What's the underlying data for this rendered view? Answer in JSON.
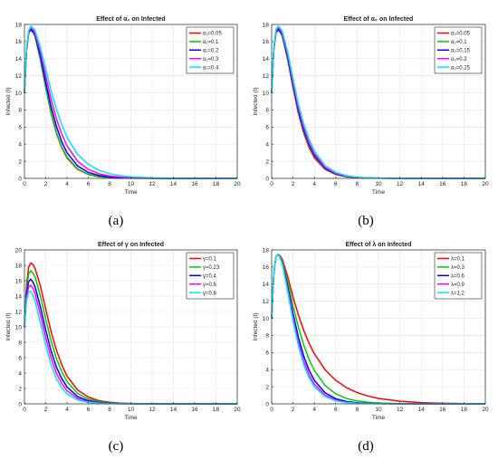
{
  "chart_data": [
    {
      "type": "line",
      "title": "Effect of α₁ on Infected",
      "caption": "(a)",
      "xlabel": "Time",
      "ylabel": "Infected (I)",
      "xlim": [
        0,
        20
      ],
      "ylim": [
        0,
        18
      ],
      "xticks": [
        0,
        2,
        4,
        6,
        8,
        10,
        12,
        14,
        16,
        18,
        20
      ],
      "yticks": [
        0,
        2,
        4,
        6,
        8,
        10,
        12,
        14,
        16,
        18
      ],
      "grid": true,
      "legend": "top-right",
      "x": [
        0,
        0.2,
        0.4,
        0.6,
        0.8,
        1,
        1.5,
        2,
        2.5,
        3,
        3.5,
        4,
        5,
        6,
        7,
        8,
        9,
        10,
        12,
        14,
        16,
        18,
        20
      ],
      "series": [
        {
          "name": "α₁=0.05",
          "color": "#ff0000",
          "values": [
            10.0,
            15.0,
            17.0,
            17.3,
            17.1,
            16.6,
            13.9,
            10.6,
            7.6,
            5.3,
            3.6,
            2.4,
            1.05,
            0.45,
            0.19,
            0.08,
            0.04,
            0.02,
            0.01,
            0.0,
            0.0,
            0.0,
            0.0
          ]
        },
        {
          "name": "α₁=0.1",
          "color": "#00cc00",
          "values": [
            10.0,
            15.0,
            17.0,
            17.3,
            17.1,
            16.6,
            13.9,
            10.6,
            7.7,
            5.4,
            3.7,
            2.5,
            1.1,
            0.48,
            0.21,
            0.09,
            0.04,
            0.02,
            0.01,
            0.0,
            0.0,
            0.0,
            0.0
          ]
        },
        {
          "name": "α₁=0.2",
          "color": "#0000ff",
          "values": [
            10.0,
            15.1,
            17.1,
            17.4,
            17.2,
            16.8,
            14.3,
            11.2,
            8.4,
            6.1,
            4.3,
            3.0,
            1.45,
            0.7,
            0.34,
            0.16,
            0.08,
            0.04,
            0.01,
            0.0,
            0.0,
            0.0,
            0.0
          ]
        },
        {
          "name": "α₁=0.3",
          "color": "#ff00ff",
          "values": [
            10.0,
            15.2,
            17.2,
            17.6,
            17.4,
            17.0,
            14.8,
            12.0,
            9.3,
            7.0,
            5.2,
            3.8,
            2.0,
            1.05,
            0.55,
            0.28,
            0.15,
            0.08,
            0.02,
            0.01,
            0.0,
            0.0,
            0.0
          ]
        },
        {
          "name": "α₁=0.4",
          "color": "#00e5ff",
          "values": [
            10.0,
            15.3,
            17.3,
            17.8,
            17.6,
            17.3,
            15.3,
            12.8,
            10.3,
            8.1,
            6.3,
            4.8,
            2.8,
            1.65,
            0.95,
            0.55,
            0.32,
            0.18,
            0.06,
            0.02,
            0.01,
            0.0,
            0.0
          ]
        }
      ]
    },
    {
      "type": "line",
      "title": "Effect of α₂ on Infected",
      "caption": "(b)",
      "xlabel": "Time",
      "ylabel": "Infected (I)",
      "xlim": [
        0,
        20
      ],
      "ylim": [
        0,
        18
      ],
      "xticks": [
        0,
        2,
        4,
        6,
        8,
        10,
        12,
        14,
        16,
        18,
        20
      ],
      "yticks": [
        0,
        2,
        4,
        6,
        8,
        10,
        12,
        14,
        16,
        18
      ],
      "grid": true,
      "legend": "top-right",
      "x": [
        0,
        0.2,
        0.4,
        0.6,
        0.8,
        1,
        1.5,
        2,
        2.5,
        3,
        3.5,
        4,
        5,
        6,
        7,
        8,
        9,
        10,
        12,
        14,
        16,
        18,
        20
      ],
      "series": [
        {
          "name": "α₂=0.05",
          "color": "#ff0000",
          "values": [
            10.0,
            15.0,
            17.0,
            17.3,
            17.1,
            16.6,
            13.9,
            10.6,
            7.6,
            5.3,
            3.6,
            2.4,
            1.05,
            0.45,
            0.19,
            0.08,
            0.04,
            0.02,
            0.01,
            0.0,
            0.0,
            0.0,
            0.0
          ]
        },
        {
          "name": "α₂=0.1",
          "color": "#00cc00",
          "values": [
            10.0,
            15.0,
            17.0,
            17.35,
            17.15,
            16.7,
            14.0,
            10.8,
            7.8,
            5.5,
            3.8,
            2.55,
            1.12,
            0.49,
            0.21,
            0.09,
            0.04,
            0.02,
            0.01,
            0.0,
            0.0,
            0.0,
            0.0
          ]
        },
        {
          "name": "α₂=0.15",
          "color": "#0000ff",
          "values": [
            10.0,
            15.1,
            17.1,
            17.45,
            17.25,
            16.8,
            14.2,
            11.0,
            8.0,
            5.7,
            4.0,
            2.7,
            1.2,
            0.53,
            0.23,
            0.1,
            0.05,
            0.02,
            0.01,
            0.0,
            0.0,
            0.0,
            0.0
          ]
        },
        {
          "name": "α₂=0.2",
          "color": "#ff00ff",
          "values": [
            10.0,
            15.15,
            17.2,
            17.6,
            17.4,
            17.0,
            14.5,
            11.3,
            8.3,
            6.0,
            4.2,
            2.9,
            1.3,
            0.58,
            0.26,
            0.12,
            0.05,
            0.02,
            0.01,
            0.0,
            0.0,
            0.0,
            0.0
          ]
        },
        {
          "name": "α₂=0.25",
          "color": "#00e5ff",
          "values": [
            10.0,
            15.3,
            17.4,
            17.8,
            17.6,
            17.2,
            14.8,
            11.7,
            8.7,
            6.4,
            4.6,
            3.2,
            1.5,
            0.7,
            0.32,
            0.15,
            0.07,
            0.03,
            0.01,
            0.0,
            0.0,
            0.0,
            0.0
          ]
        }
      ]
    },
    {
      "type": "line",
      "title": "Effect of γ on Infected",
      "caption": "(c)",
      "xlabel": "Time",
      "ylabel": "Infected (I)",
      "xlim": [
        0,
        20
      ],
      "ylim": [
        0,
        20
      ],
      "xticks": [
        0,
        2,
        4,
        6,
        8,
        10,
        12,
        14,
        16,
        18,
        20
      ],
      "yticks": [
        0,
        2,
        4,
        6,
        8,
        10,
        12,
        14,
        16,
        18,
        20
      ],
      "grid": true,
      "legend": "top-right",
      "x": [
        0,
        0.2,
        0.4,
        0.6,
        0.8,
        1,
        1.5,
        2,
        2.5,
        3,
        3.5,
        4,
        5,
        6,
        7,
        8,
        9,
        10,
        12,
        14,
        16,
        18,
        20
      ],
      "series": [
        {
          "name": "γ=0.1",
          "color": "#ff0000",
          "values": [
            10.0,
            15.5,
            17.8,
            18.3,
            18.1,
            17.6,
            15.3,
            12.3,
            9.4,
            7.0,
            5.1,
            3.6,
            1.8,
            0.88,
            0.42,
            0.2,
            0.1,
            0.05,
            0.01,
            0.0,
            0.0,
            0.0,
            0.0
          ]
        },
        {
          "name": "γ=0.23",
          "color": "#00cc00",
          "values": [
            10.0,
            15.0,
            16.9,
            17.3,
            17.0,
            16.5,
            14.0,
            11.0,
            8.2,
            5.9,
            4.2,
            2.9,
            1.35,
            0.62,
            0.28,
            0.13,
            0.06,
            0.03,
            0.01,
            0.0,
            0.0,
            0.0,
            0.0
          ]
        },
        {
          "name": "γ=0.4",
          "color": "#0000ff",
          "values": [
            10.0,
            14.4,
            15.9,
            16.2,
            15.8,
            15.2,
            12.6,
            9.6,
            6.9,
            4.8,
            3.3,
            2.2,
            0.95,
            0.4,
            0.17,
            0.07,
            0.03,
            0.01,
            0.0,
            0.0,
            0.0,
            0.0,
            0.0
          ]
        },
        {
          "name": "γ=0.6",
          "color": "#ff00ff",
          "values": [
            10.0,
            13.9,
            15.2,
            15.4,
            15.0,
            14.3,
            11.6,
            8.6,
            6.0,
            4.0,
            2.65,
            1.7,
            0.7,
            0.28,
            0.11,
            0.04,
            0.02,
            0.01,
            0.0,
            0.0,
            0.0,
            0.0,
            0.0
          ]
        },
        {
          "name": "γ=0.8",
          "color": "#00e5ff",
          "values": [
            10.0,
            13.4,
            14.5,
            14.6,
            14.1,
            13.3,
            10.5,
            7.6,
            5.1,
            3.3,
            2.1,
            1.3,
            0.5,
            0.19,
            0.07,
            0.03,
            0.01,
            0.0,
            0.0,
            0.0,
            0.0,
            0.0,
            0.0
          ]
        }
      ]
    },
    {
      "type": "line",
      "title": "Effect of λ on Infected",
      "caption": "(d)",
      "xlabel": "Time",
      "ylabel": "Infected (I)",
      "xlim": [
        0,
        20
      ],
      "ylim": [
        0,
        18
      ],
      "xticks": [
        0,
        2,
        4,
        6,
        8,
        10,
        12,
        14,
        16,
        18,
        20
      ],
      "yticks": [
        0,
        2,
        4,
        6,
        8,
        10,
        12,
        14,
        16,
        18
      ],
      "grid": true,
      "legend": "top-right",
      "x": [
        0,
        0.2,
        0.4,
        0.6,
        0.8,
        1,
        1.5,
        2,
        2.5,
        3,
        3.5,
        4,
        5,
        6,
        7,
        8,
        9,
        10,
        12,
        14,
        16,
        18,
        20
      ],
      "series": [
        {
          "name": "λ=0.1",
          "color": "#ff0000",
          "values": [
            10.0,
            15.2,
            17.2,
            17.5,
            17.3,
            16.9,
            14.9,
            12.5,
            10.4,
            8.6,
            7.1,
            5.85,
            4.0,
            2.75,
            1.9,
            1.32,
            0.92,
            0.64,
            0.3,
            0.14,
            0.07,
            0.03,
            0.02
          ]
        },
        {
          "name": "λ=0.3",
          "color": "#00cc00",
          "values": [
            10.0,
            15.2,
            17.2,
            17.5,
            17.2,
            16.7,
            14.3,
            11.5,
            9.0,
            6.9,
            5.2,
            3.9,
            2.15,
            1.17,
            0.63,
            0.34,
            0.18,
            0.1,
            0.03,
            0.01,
            0.0,
            0.0,
            0.0
          ]
        },
        {
          "name": "λ=0.6",
          "color": "#0000ff",
          "values": [
            10.0,
            15.2,
            17.2,
            17.5,
            17.1,
            16.5,
            13.7,
            10.6,
            7.8,
            5.6,
            3.95,
            2.75,
            1.3,
            0.6,
            0.28,
            0.13,
            0.06,
            0.03,
            0.01,
            0.0,
            0.0,
            0.0,
            0.0
          ]
        },
        {
          "name": "λ=0.9",
          "color": "#ff00ff",
          "values": [
            10.0,
            15.2,
            17.2,
            17.5,
            17.1,
            16.4,
            13.4,
            10.1,
            7.2,
            5.0,
            3.4,
            2.3,
            1.02,
            0.44,
            0.19,
            0.08,
            0.04,
            0.02,
            0.0,
            0.0,
            0.0,
            0.0,
            0.0
          ]
        },
        {
          "name": "λ=1.2",
          "color": "#00e5ff",
          "values": [
            10.0,
            15.2,
            17.2,
            17.5,
            17.0,
            16.3,
            13.1,
            9.7,
            6.8,
            4.6,
            3.05,
            2.0,
            0.85,
            0.35,
            0.14,
            0.06,
            0.02,
            0.01,
            0.0,
            0.0,
            0.0,
            0.0,
            0.0
          ]
        }
      ]
    }
  ]
}
